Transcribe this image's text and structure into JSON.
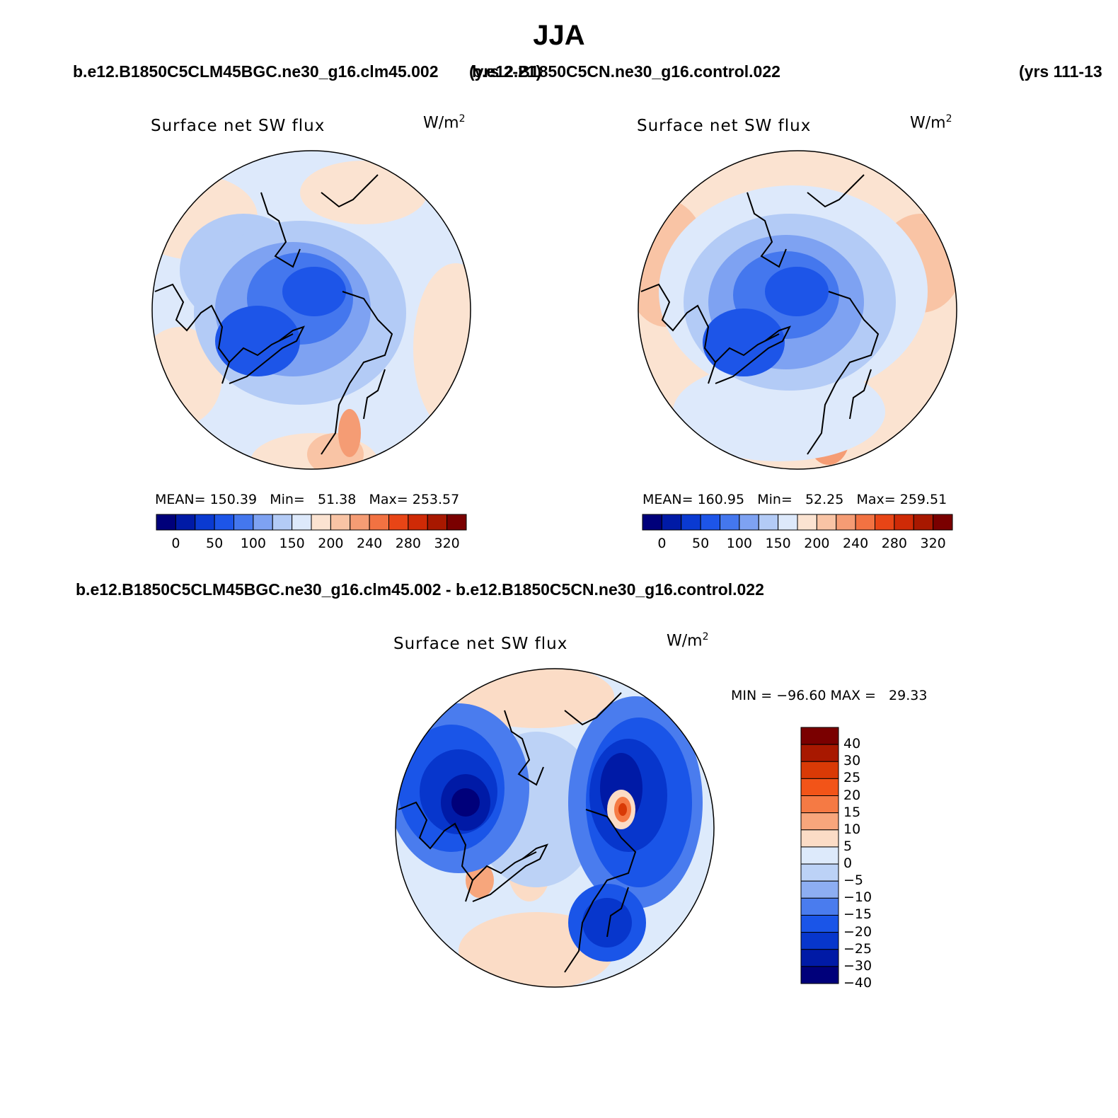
{
  "header": {
    "title": "JJA",
    "case_left": "b.e12.B1850C5CLM45BGC.ne30_g16.clm45.002",
    "years_left": "(yrs 2-21)",
    "case_right": "b.e12.B1850C5CN.ne30_g16.control.022",
    "years_right": "(yrs 111-13"
  },
  "panels": [
    {
      "title": "Surface net SW flux",
      "units": "W/m",
      "units_sup": "2",
      "stats": {
        "mean_label": "MEAN=",
        "mean": "150.39",
        "min_label": "Min=",
        "min": "51.38",
        "max_label": "Max=",
        "max": "253.57"
      }
    },
    {
      "title": "Surface net SW flux",
      "units": "W/m",
      "units_sup": "2",
      "stats": {
        "mean_label": "MEAN=",
        "mean": "160.95",
        "min_label": "Min=",
        "min": "52.25",
        "max_label": "Max=",
        "max": "259.51"
      }
    }
  ],
  "abs_colorbar": {
    "colors": [
      "#00007a",
      "#001aa6",
      "#0a3ad1",
      "#1d55e8",
      "#4477ee",
      "#7ea2f2",
      "#b3cbf6",
      "#dde9fb",
      "#fbe3d1",
      "#f9c4a5",
      "#f59c74",
      "#f27242",
      "#e84516",
      "#cf2a06",
      "#a81800",
      "#7a0000"
    ],
    "tick_labels": [
      "0",
      "50",
      "100",
      "150",
      "200",
      "240",
      "280",
      "320"
    ]
  },
  "diff": {
    "case_title": "b.e12.B1850C5CLM45BGC.ne30_g16.clm45.002 - b.e12.B1850C5CN.ne30_g16.control.022",
    "title": "Surface net SW flux",
    "units": "W/m",
    "units_sup": "2",
    "minmax": "MIN = −96.60 MAX =   29.33",
    "colorbar": {
      "colors": [
        "#7a0000",
        "#a81800",
        "#d93a06",
        "#f25418",
        "#f57a44",
        "#f7a67c",
        "#fbdcc6",
        "#ddeafb",
        "#bcd2f6",
        "#8daef2",
        "#4a7cee",
        "#1a55e8",
        "#0736cc",
        "#001aa6",
        "#00007a"
      ],
      "tick_labels": [
        "40",
        "30",
        "25",
        "20",
        "15",
        "10",
        "5",
        "0",
        "−5",
        "−10",
        "−15",
        "−20",
        "−25",
        "−30",
        "−40"
      ]
    }
  }
}
